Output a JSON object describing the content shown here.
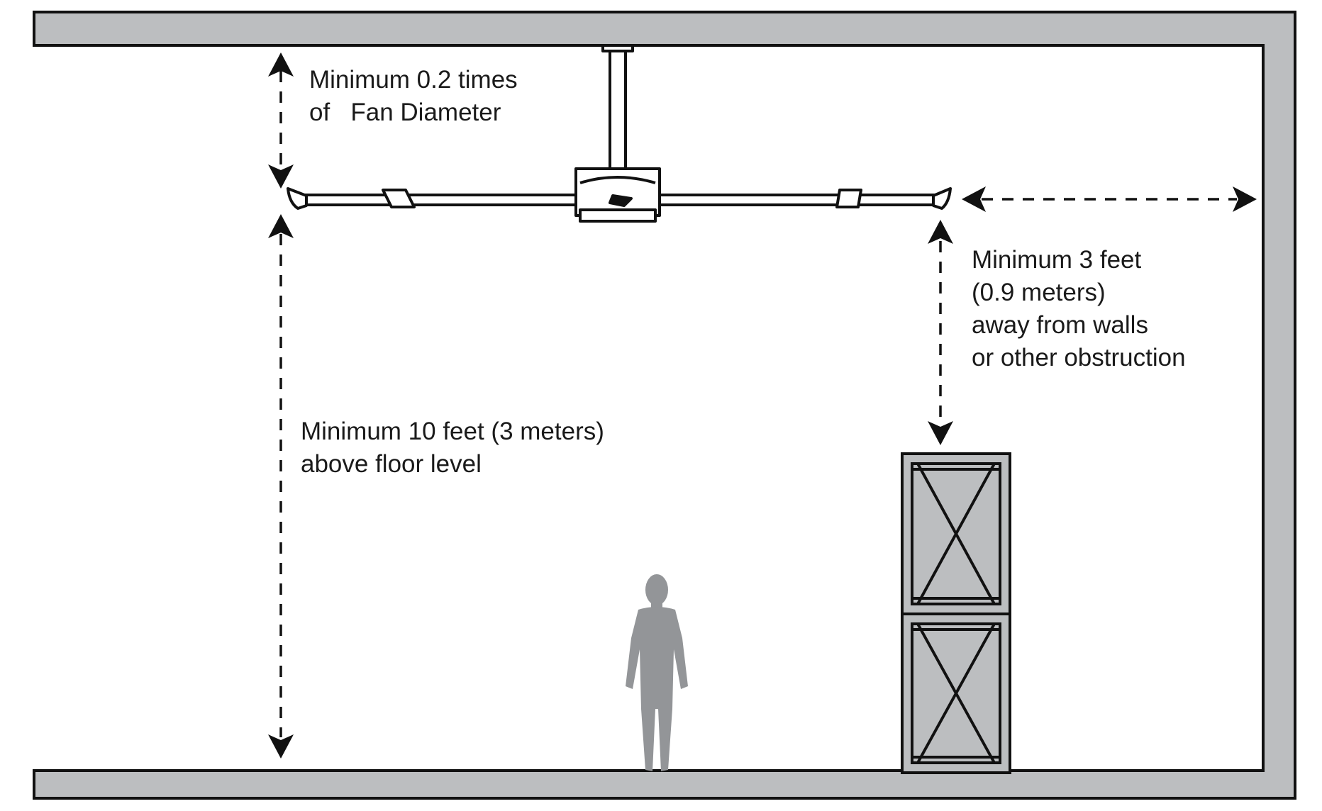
{
  "labels": {
    "ceiling_clearance": [
      "Minimum 0.2 times",
      "of   Fan Diameter"
    ],
    "floor_clearance": [
      "Minimum 10 feet (3 meters)",
      "above floor level"
    ],
    "wall_clearance": [
      "Minimum 3 feet",
      "(0.9 meters)",
      "away from walls",
      "or other obstruction"
    ]
  },
  "colors": {
    "structure": "#bcbec0",
    "outline": "#111111",
    "person": "#939598",
    "background": "#ffffff"
  },
  "icons": {
    "fan": "ceiling-fan-icon",
    "person": "person-silhouette-icon",
    "crate": "crate-icon"
  }
}
